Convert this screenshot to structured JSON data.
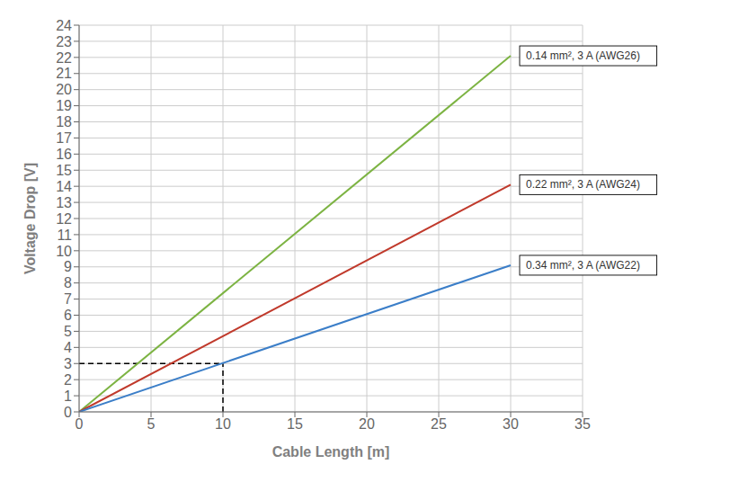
{
  "chart_data": {
    "type": "line",
    "x": [
      0,
      30
    ],
    "series": [
      {
        "name": "0.14 mm², 3 A (AWG26)",
        "color": "#7CB342",
        "values": [
          0,
          22.1
        ]
      },
      {
        "name": "0.22 mm², 3 A (AWG24)",
        "color": "#C0392B",
        "values": [
          0,
          14.1
        ]
      },
      {
        "name": "0.34 mm², 3 A (AWG22)",
        "color": "#3B7EC8",
        "values": [
          0,
          9.1
        ]
      }
    ],
    "guides": [
      {
        "x": [
          0,
          10
        ],
        "values": [
          3,
          3
        ],
        "color": "#000000",
        "line_style": "dashed"
      },
      {
        "x": [
          10,
          10
        ],
        "values": [
          0,
          3
        ],
        "color": "#000000",
        "line_style": "dashed"
      }
    ],
    "xlabel": "Cable Length [m]",
    "ylabel": "Voltage Drop [V]",
    "xlim": [
      0,
      35
    ],
    "ylim": [
      0,
      24
    ],
    "xticks": [
      0,
      5,
      10,
      15,
      20,
      25,
      30,
      35
    ],
    "yticks": [
      0,
      1,
      2,
      3,
      4,
      5,
      6,
      7,
      8,
      9,
      10,
      11,
      12,
      13,
      14,
      15,
      16,
      17,
      18,
      19,
      20,
      21,
      22,
      23,
      24
    ],
    "grid": true
  }
}
